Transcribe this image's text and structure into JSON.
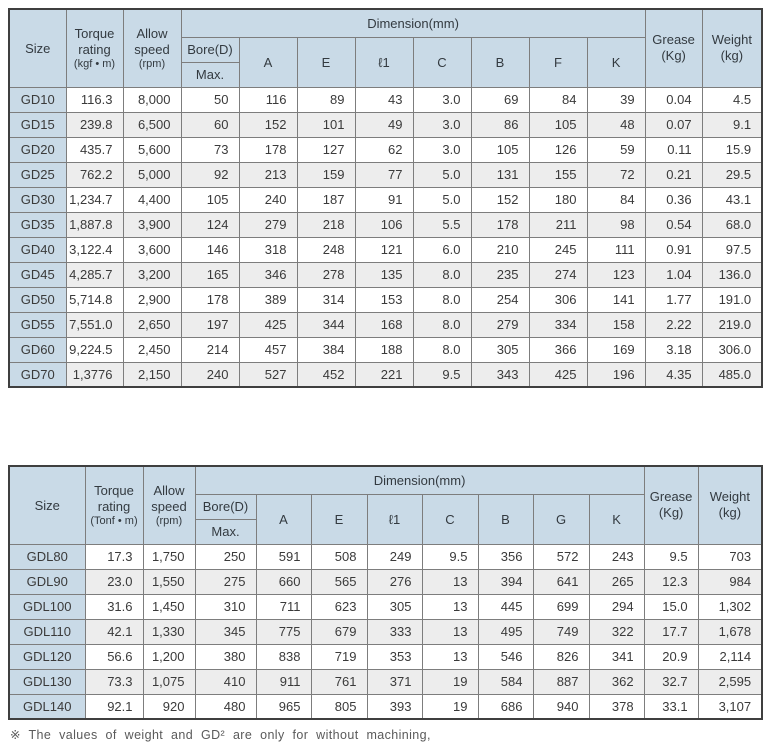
{
  "colors": {
    "header_bg": "#c9dae7",
    "alt_row_bg": "#ededed",
    "inner_border": "#7d7d7d",
    "outer_border": "#3f3f3f",
    "text": "#3a3a3a"
  },
  "footnote": "※  The values of weight and GD² are only for without machining,",
  "tables": [
    {
      "name": "gd-series-spec-table",
      "header": {
        "size": "Size",
        "torque_l1": "Torque",
        "torque_l2": "rating",
        "torque_unit": "(kgf • m)",
        "speed_l1": "Allow",
        "speed_l2": "speed",
        "speed_unit": "(rpm)",
        "dimension": "Dimension(mm)",
        "bore": "Bore(D)",
        "bore_sub": "Max.",
        "dims": [
          "A",
          "E",
          "ℓ1",
          "C",
          "B",
          "F",
          "K"
        ],
        "grease_l1": "Grease",
        "grease_unit": "(Kg)",
        "weight_l1": "Weight",
        "weight_unit": "(kg)"
      },
      "rows": [
        [
          "GD10",
          "116.3",
          "8,000",
          "50",
          "116",
          "89",
          "43",
          "3.0",
          "69",
          "84",
          "39",
          "0.04",
          "4.5"
        ],
        [
          "GD15",
          "239.8",
          "6,500",
          "60",
          "152",
          "101",
          "49",
          "3.0",
          "86",
          "105",
          "48",
          "0.07",
          "9.1"
        ],
        [
          "GD20",
          "435.7",
          "5,600",
          "73",
          "178",
          "127",
          "62",
          "3.0",
          "105",
          "126",
          "59",
          "0.11",
          "15.9"
        ],
        [
          "GD25",
          "762.2",
          "5,000",
          "92",
          "213",
          "159",
          "77",
          "5.0",
          "131",
          "155",
          "72",
          "0.21",
          "29.5"
        ],
        [
          "GD30",
          "1,234.7",
          "4,400",
          "105",
          "240",
          "187",
          "91",
          "5.0",
          "152",
          "180",
          "84",
          "0.36",
          "43.1"
        ],
        [
          "GD35",
          "1,887.8",
          "3,900",
          "124",
          "279",
          "218",
          "106",
          "5.5",
          "178",
          "211",
          "98",
          "0.54",
          "68.0"
        ],
        [
          "GD40",
          "3,122.4",
          "3,600",
          "146",
          "318",
          "248",
          "121",
          "6.0",
          "210",
          "245",
          "111",
          "0.91",
          "97.5"
        ],
        [
          "GD45",
          "4,285.7",
          "3,200",
          "165",
          "346",
          "278",
          "135",
          "8.0",
          "235",
          "274",
          "123",
          "1.04",
          "136.0"
        ],
        [
          "GD50",
          "5,714.8",
          "2,900",
          "178",
          "389",
          "314",
          "153",
          "8.0",
          "254",
          "306",
          "141",
          "1.77",
          "191.0"
        ],
        [
          "GD55",
          "7,551.0",
          "2,650",
          "197",
          "425",
          "344",
          "168",
          "8.0",
          "279",
          "334",
          "158",
          "2.22",
          "219.0"
        ],
        [
          "GD60",
          "9,224.5",
          "2,450",
          "214",
          "457",
          "384",
          "188",
          "8.0",
          "305",
          "366",
          "169",
          "3.18",
          "306.0"
        ],
        [
          "GD70",
          "1,3776",
          "2,150",
          "240",
          "527",
          "452",
          "221",
          "9.5",
          "343",
          "425",
          "196",
          "4.35",
          "485.0"
        ]
      ]
    },
    {
      "name": "gdl-series-spec-table",
      "header": {
        "size": "Size",
        "torque_l1": "Torque",
        "torque_l2": "rating",
        "torque_unit": "(Tonf • m)",
        "speed_l1": "Allow",
        "speed_l2": "speed",
        "speed_unit": "(rpm)",
        "dimension": "Dimension(mm)",
        "bore": "Bore(D)",
        "bore_sub": "Max.",
        "dims": [
          "A",
          "E",
          "ℓ1",
          "C",
          "B",
          "G",
          "K"
        ],
        "grease_l1": "Grease",
        "grease_unit": "(Kg)",
        "weight_l1": "Weight",
        "weight_unit": "(kg)"
      },
      "rows": [
        [
          "GDL80",
          "17.3",
          "1,750",
          "250",
          "591",
          "508",
          "249",
          "9.5",
          "356",
          "572",
          "243",
          "9.5",
          "703"
        ],
        [
          "GDL90",
          "23.0",
          "1,550",
          "275",
          "660",
          "565",
          "276",
          "13",
          "394",
          "641",
          "265",
          "12.3",
          "984"
        ],
        [
          "GDL100",
          "31.6",
          "1,450",
          "310",
          "711",
          "623",
          "305",
          "13",
          "445",
          "699",
          "294",
          "15.0",
          "1,302"
        ],
        [
          "GDL110",
          "42.1",
          "1,330",
          "345",
          "775",
          "679",
          "333",
          "13",
          "495",
          "749",
          "322",
          "17.7",
          "1,678"
        ],
        [
          "GDL120",
          "56.6",
          "1,200",
          "380",
          "838",
          "719",
          "353",
          "13",
          "546",
          "826",
          "341",
          "20.9",
          "2,114"
        ],
        [
          "GDL130",
          "73.3",
          "1,075",
          "410",
          "911",
          "761",
          "371",
          "19",
          "584",
          "887",
          "362",
          "32.7",
          "2,595"
        ],
        [
          "GDL140",
          "92.1",
          "920",
          "480",
          "965",
          "805",
          "393",
          "19",
          "686",
          "940",
          "378",
          "33.1",
          "3,107"
        ]
      ]
    }
  ]
}
